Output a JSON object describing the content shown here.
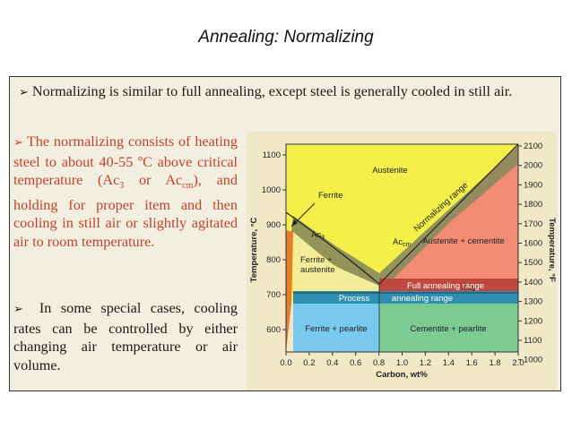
{
  "title": "Annealing: Normalizing",
  "bullets": {
    "intro": "Normalizing is similar to full annealing, except steel is generally cooled in still air.",
    "process_line1": "The normalizing consists of heating steel to about 40-55 ºC above critical temperature (Ac",
    "process_sub1": "3",
    "process_mid": " or Ac",
    "process_sub2": "cm",
    "process_line2": "), and holding for proper item and then cooling in still air or slightly agitated air to room temperature.",
    "special": "In some special cases, cooling rates can be controlled by either changing air temperature or air volume."
  },
  "diagram": {
    "y_label_left": "Temperature, °C",
    "y_label_right": "Temperature, °F",
    "x_label": "Carbon, wt%",
    "x_ticks": [
      "0.0",
      "0.2",
      "0.4",
      "0.6",
      "0.8",
      "1.0",
      "1.2",
      "1.4",
      "1.6",
      "1.8",
      "2.0"
    ],
    "y_ticks_c": [
      "1100",
      "1000",
      "900",
      "800",
      "700",
      "600"
    ],
    "y_ticks_f": [
      "2100",
      "2000",
      "1900",
      "1800",
      "1700",
      "1600",
      "1500",
      "1400",
      "1300",
      "1200",
      "1100",
      "1000"
    ],
    "regions": {
      "austenite": "Austenite",
      "ferrite": "Ferrite",
      "ferrite_austenite_1": "Ferrite +",
      "ferrite_austenite_2": "austenite",
      "austenite_cementite": "Austenite + cementite",
      "ferrite_pearlite": "Ferrite + pearlite",
      "cementite_pearlite": "Cementite + pearlite"
    },
    "lines": {
      "ac3": "Ac",
      "ac3_sub": "3",
      "acm": "Ac",
      "acm_sub": "cm",
      "ac1": "Ac",
      "ac1_sub": "1",
      "normalizing_range": "Normalizing range",
      "full_annealing_range": "Full annealing range",
      "process_annealing_range_a": "Process",
      "process_annealing_range_b": "annealing range"
    },
    "colors": {
      "austenite": "#f5ef4a",
      "austenite_cementite": "#f28b73",
      "ferrite_pearlite": "#79c8ee",
      "cementite_pearlite": "#7ccb93",
      "process_band": "#2e8fb0",
      "full_annealing_band": "#c0473f",
      "normalizing_band": "#8a8a5c",
      "ferrite_strip": "#e77d25"
    }
  }
}
